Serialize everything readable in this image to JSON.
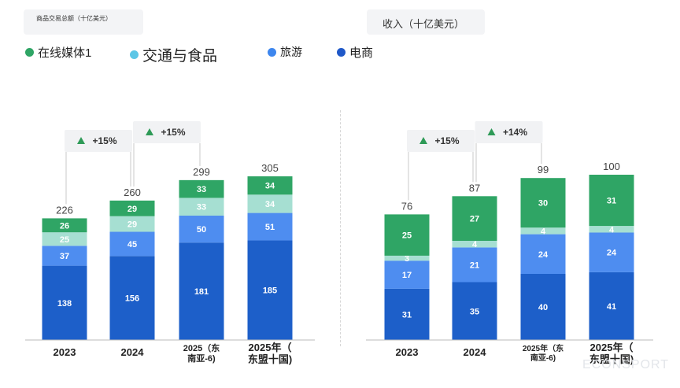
{
  "colors": {
    "media": "#2fa565",
    "travel_food": "#9bdcc4",
    "travel": "#4e8df0",
    "ecommerce": "#1d5fc9"
  },
  "legend": [
    {
      "label": "在线媒体1",
      "color": "#2fa565",
      "size": 15
    },
    {
      "label": "交通与食品",
      "color": "#5cc6e6",
      "size": 19
    },
    {
      "label": "旅游",
      "color": "#3d86ee",
      "size": 14
    },
    {
      "label": "电商",
      "color": "#1f58c8",
      "size": 15
    }
  ],
  "watermark": "ECONSPORT",
  "chart_data": [
    {
      "type": "bar",
      "stacked": true,
      "title": "商品交易总额（十亿美元）",
      "categories": [
        "2023",
        "2024",
        "2025（东南亚-6）",
        "2025年（东盟十国）"
      ],
      "category_lines": [
        [
          "2023"
        ],
        [
          "2024"
        ],
        [
          "2025（东",
          "南亚-6)"
        ],
        [
          "2025年（",
          "东盟十国)"
        ]
      ],
      "category_font": [
        13,
        13,
        11,
        13
      ],
      "totals": [
        "226",
        "260",
        "299",
        "305"
      ],
      "series": [
        {
          "name": "电商",
          "color": "#1d5fc9",
          "values": [
            138,
            156,
            181,
            185
          ]
        },
        {
          "name": "旅游",
          "color": "#4e8df0",
          "values": [
            37,
            45,
            50,
            51
          ]
        },
        {
          "name": "交通与食品",
          "color": "#a6dfd2",
          "values": [
            25,
            29,
            33,
            34
          ]
        },
        {
          "name": "在线媒体1",
          "color": "#2fa565",
          "values": [
            26,
            29,
            33,
            34
          ]
        }
      ],
      "growth": [
        "+15%",
        "+15%"
      ]
    },
    {
      "type": "bar",
      "stacked": true,
      "title": "收入（十亿美元）",
      "categories": [
        "2023",
        "2024",
        "2025年（东南亚-6）",
        "2025年（东盟十国）"
      ],
      "category_lines": [
        [
          "2023"
        ],
        [
          "2024"
        ],
        [
          "2025年（东",
          "南亚-6)"
        ],
        [
          "2025年（",
          "东盟十国)"
        ]
      ],
      "category_font": [
        13,
        13,
        10,
        13
      ],
      "totals": [
        "76",
        "87",
        "99",
        "100"
      ],
      "series": [
        {
          "name": "电商",
          "color": "#1d5fc9",
          "values": [
            31,
            35,
            40,
            41
          ]
        },
        {
          "name": "旅游",
          "color": "#4e8df0",
          "values": [
            17,
            21,
            24,
            24
          ]
        },
        {
          "name": "交通与食品",
          "color": "#a6dfd2",
          "values": [
            3,
            4,
            4,
            4
          ]
        },
        {
          "name": "在线媒体1",
          "color": "#2fa565",
          "values": [
            25,
            27,
            30,
            31
          ]
        }
      ],
      "growth": [
        "+15%",
        "+14%"
      ]
    }
  ]
}
